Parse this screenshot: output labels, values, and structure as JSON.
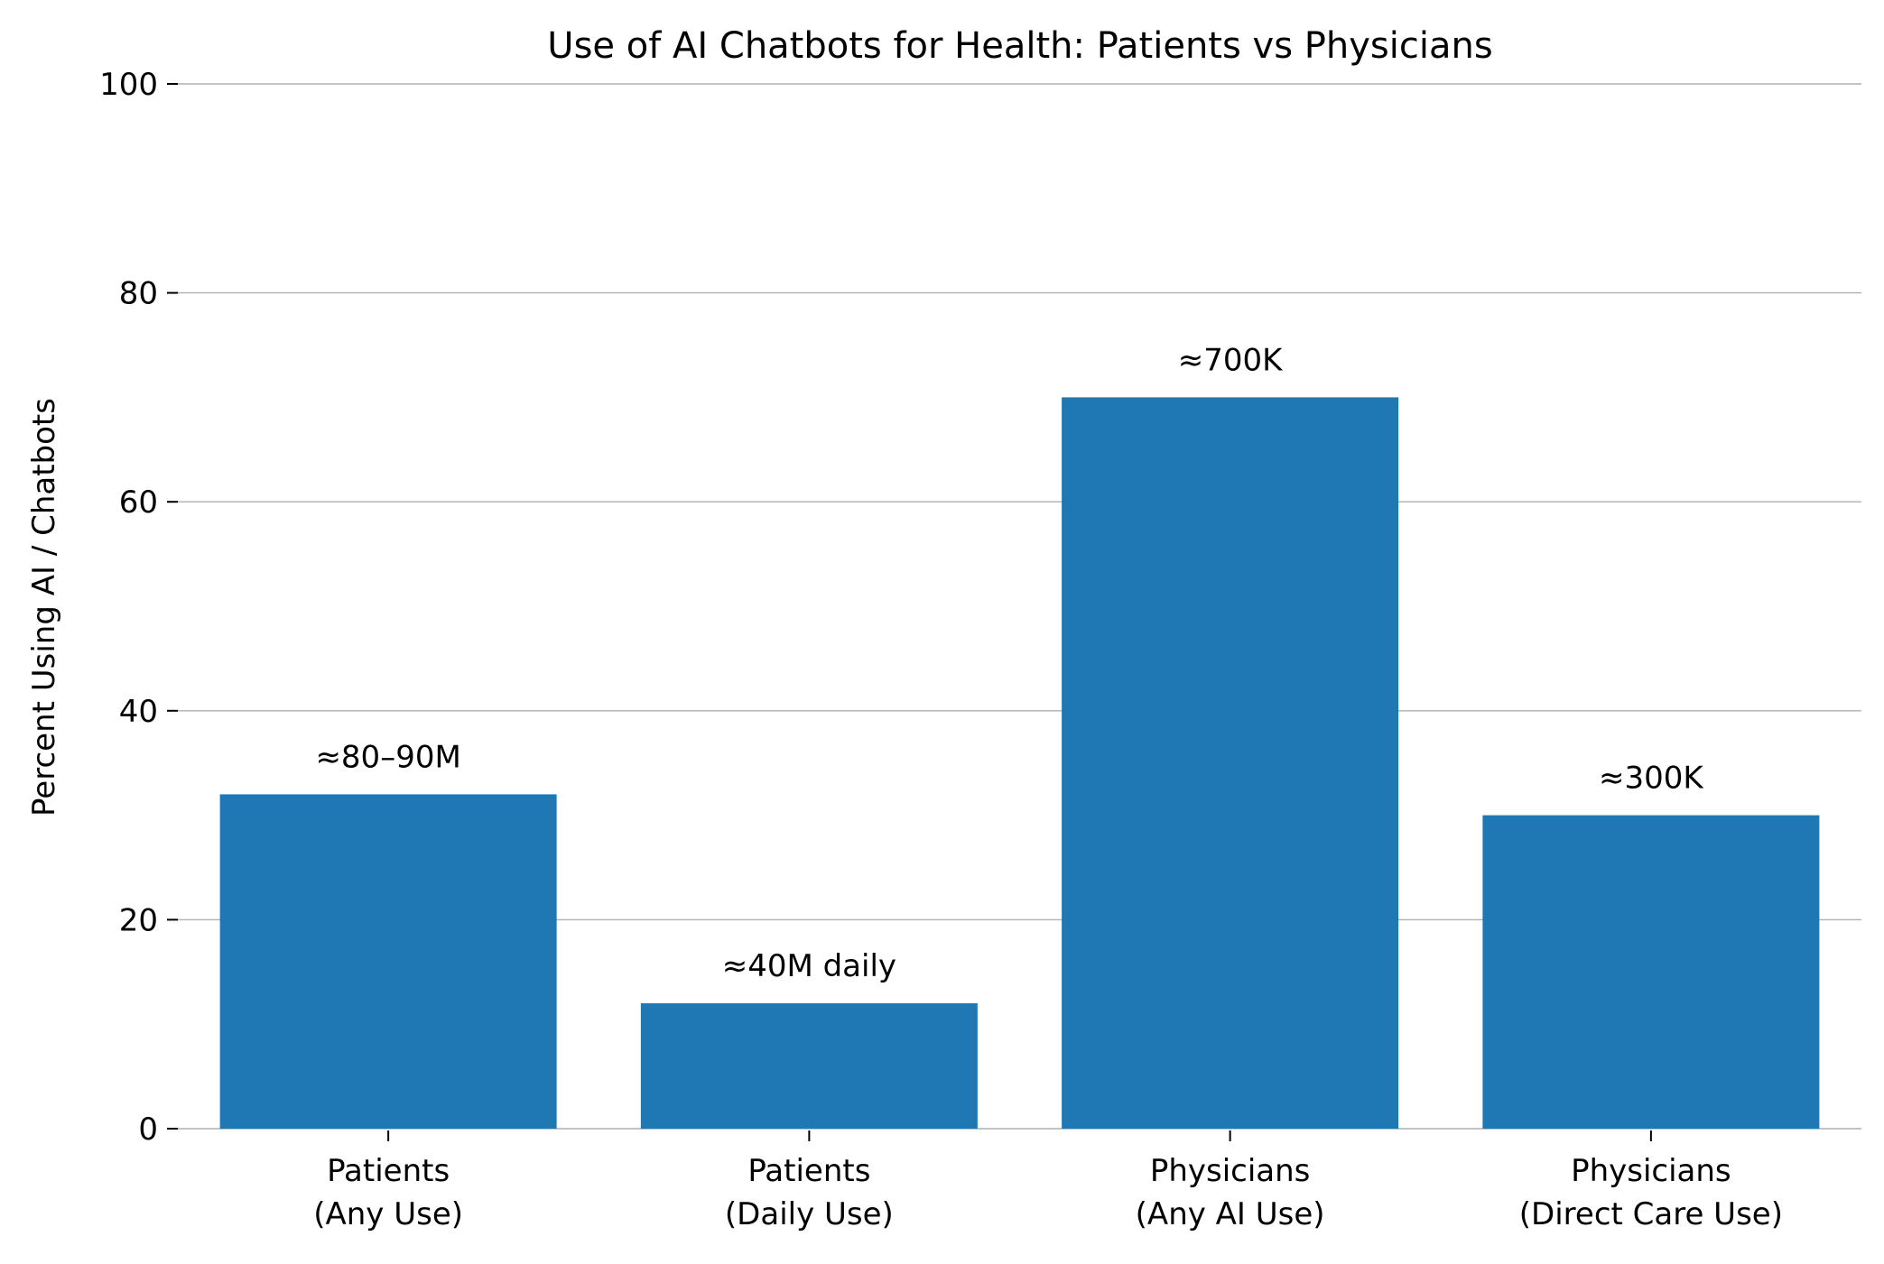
{
  "chart_data": {
    "type": "bar",
    "title": "Use of AI Chatbots for Health: Patients vs Physicians",
    "xlabel": "",
    "ylabel": "Percent Using AI / Chatbots",
    "ylim": [
      0,
      100
    ],
    "yticks": [
      0,
      20,
      40,
      60,
      80,
      100
    ],
    "grid": "horizontal",
    "categories": [
      [
        "Patients",
        "(Any Use)"
      ],
      [
        "Patients",
        "(Daily Use)"
      ],
      [
        "Physicians",
        "(Any AI Use)"
      ],
      [
        "Physicians",
        "(Direct Care Use)"
      ]
    ],
    "values": [
      32,
      12,
      70,
      30
    ],
    "bar_labels": [
      "≈80–90M",
      "≈40M daily",
      "≈700K",
      "≈300K"
    ],
    "colors": {
      "bar": "#1f77b4",
      "grid": "#b0b0b0",
      "axis": "#000000"
    }
  }
}
